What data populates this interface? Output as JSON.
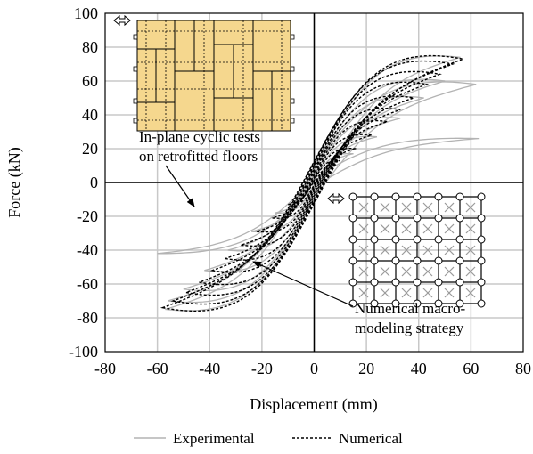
{
  "chart_data": {
    "type": "line",
    "title": "",
    "xlabel": "Displacement (mm)",
    "ylabel": "Force (kN)",
    "xlim": [
      -80,
      80
    ],
    "ylim": [
      -100,
      100
    ],
    "x_ticks": [
      "-80",
      "-60",
      "-40",
      "-20",
      "0",
      "20",
      "40",
      "60",
      "80"
    ],
    "y_ticks": [
      "100",
      "80",
      "60",
      "40",
      "20",
      "0",
      "-20",
      "-40",
      "-60",
      "-80",
      "-100"
    ],
    "grid": true,
    "legend_position": "bottom",
    "series": [
      {
        "name": "Experimental",
        "color": "#b3b3b3",
        "style": "solid",
        "loops": [
          {
            "dmax": 56,
            "fmax": 74,
            "dmin": -57,
            "fmin": -75,
            "w": 0.2
          },
          {
            "dmax": 62,
            "fmax": 58,
            "dmin": -56,
            "fmin": -70,
            "w": 0.22
          },
          {
            "dmax": 63,
            "fmax": 26,
            "dmin": -60,
            "fmin": -42,
            "w": 0.1
          },
          {
            "dmax": 50,
            "fmax": 60,
            "dmin": -50,
            "fmin": -63,
            "w": 0.22
          },
          {
            "dmax": 42,
            "fmax": 50,
            "dmin": -42,
            "fmin": -52,
            "w": 0.22
          },
          {
            "dmax": 33,
            "fmax": 38,
            "dmin": -33,
            "fmin": -40,
            "w": 0.2
          },
          {
            "dmax": 24,
            "fmax": 27,
            "dmin": -24,
            "fmin": -29,
            "w": 0.18
          },
          {
            "dmax": 15,
            "fmax": 17,
            "dmin": -15,
            "fmin": -18,
            "w": 0.15
          }
        ]
      },
      {
        "name": "Numerical",
        "color": "#000000",
        "style": "dashed",
        "loops": [
          {
            "dmax": 57,
            "fmax": 73,
            "dmin": -58,
            "fmin": -74,
            "w": 0.28
          },
          {
            "dmax": 53,
            "fmax": 70,
            "dmin": -54,
            "fmin": -70,
            "w": 0.28
          },
          {
            "dmax": 48,
            "fmax": 64,
            "dmin": -49,
            "fmin": -65,
            "w": 0.27
          },
          {
            "dmax": 43,
            "fmax": 58,
            "dmin": -44,
            "fmin": -59,
            "w": 0.26
          },
          {
            "dmax": 38,
            "fmax": 50,
            "dmin": -39,
            "fmin": -52,
            "w": 0.25
          },
          {
            "dmax": 33,
            "fmax": 43,
            "dmin": -34,
            "fmin": -45,
            "w": 0.24
          },
          {
            "dmax": 28,
            "fmax": 36,
            "dmin": -28,
            "fmin": -37,
            "w": 0.22
          },
          {
            "dmax": 22,
            "fmax": 28,
            "dmin": -22,
            "fmin": -29,
            "w": 0.2
          },
          {
            "dmax": 16,
            "fmax": 20,
            "dmin": -16,
            "fmin": -21,
            "w": 0.18
          },
          {
            "dmax": 10,
            "fmax": 13,
            "dmin": -10,
            "fmin": -13,
            "w": 0.15
          }
        ]
      }
    ],
    "annotations": [
      {
        "lines": [
          "In-plane cyclic tests",
          "on retrofitted floors"
        ],
        "target": "experimental loops",
        "anchor": "upper-left"
      },
      {
        "lines": [
          "Numerical macro-",
          "modeling strategy"
        ],
        "target": "numerical loops",
        "anchor": "lower-right"
      }
    ],
    "insets": [
      {
        "name": "retrofitted floor photo-schematic",
        "position": "upper-left",
        "fill": "#f5d78e"
      },
      {
        "name": "macro-model mesh",
        "position": "lower-right"
      }
    ]
  }
}
